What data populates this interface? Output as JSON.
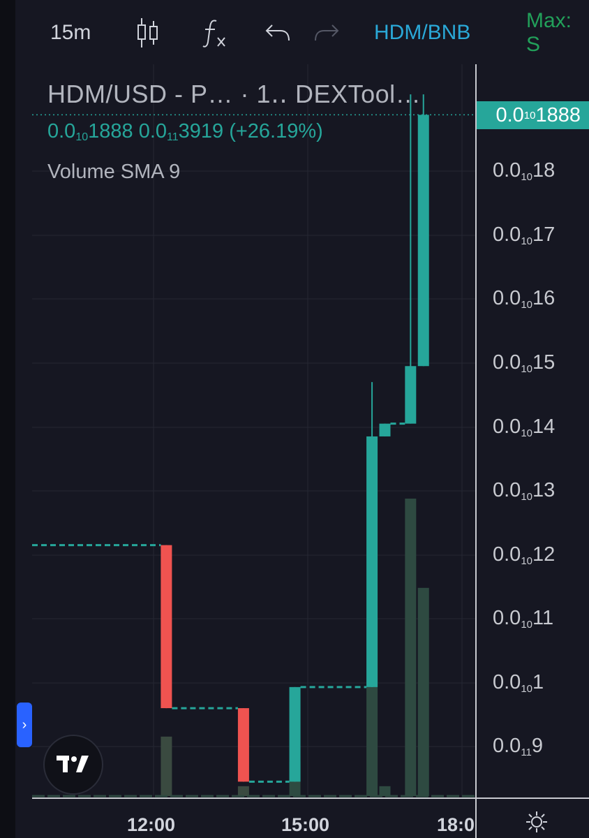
{
  "toolbar": {
    "interval": "15m",
    "undo_icon": "undo-icon",
    "redo_icon": "redo-icon",
    "symbol": "HDM/BNB",
    "max_label": "Max: S"
  },
  "legend": {
    "title": "HDM/USD - P… · 1‥ DEXTool…",
    "price_prefix": "0.0",
    "price_sub": "10",
    "price_rest": "1888",
    "change_prefix": "0.0",
    "change_sub": "11",
    "change_rest": "3919 (+26.19%)",
    "volume_label": "Volume SMA 9"
  },
  "current_price": {
    "prefix": "0.0",
    "sub": "10",
    "rest": "1888"
  },
  "price_axis": [
    {
      "prefix": "0.0",
      "sub": "10",
      "rest": "18"
    },
    {
      "prefix": "0.0",
      "sub": "10",
      "rest": "17"
    },
    {
      "prefix": "0.0",
      "sub": "10",
      "rest": "16"
    },
    {
      "prefix": "0.0",
      "sub": "10",
      "rest": "15"
    },
    {
      "prefix": "0.0",
      "sub": "10",
      "rest": "14"
    },
    {
      "prefix": "0.0",
      "sub": "10",
      "rest": "13"
    },
    {
      "prefix": "0.0",
      "sub": "10",
      "rest": "12"
    },
    {
      "prefix": "0.0",
      "sub": "10",
      "rest": "11"
    },
    {
      "prefix": "0.0",
      "sub": "10",
      "rest": "1"
    },
    {
      "prefix": "0.0",
      "sub": "11",
      "rest": "9"
    }
  ],
  "time_axis": [
    "12:00",
    "15:00",
    "18:0"
  ],
  "colors": {
    "up": "#26a69a",
    "down": "#ef5350",
    "volume_up": "#2e4a41",
    "background": "#161722",
    "grid": "#252733",
    "accent": "#2962ff"
  },
  "chart_data": {
    "type": "candlestick",
    "ylim": [
      8.2,
      19.4
    ],
    "candles": [
      {
        "t": "12:15",
        "o": 12.15,
        "h": 12.15,
        "l": 9.6,
        "c": 9.6,
        "v": 0.6
      },
      {
        "t": "13:45",
        "o": 9.6,
        "h": 9.6,
        "l": 8.45,
        "c": 8.45,
        "v": 0.1
      },
      {
        "t": "14:45",
        "o": 8.45,
        "h": 9.93,
        "l": 8.45,
        "c": 9.93,
        "v": 0.35
      },
      {
        "t": "16:15",
        "o": 9.93,
        "h": 14.7,
        "l": 9.93,
        "c": 13.85,
        "v": 1.8
      },
      {
        "t": "16:30",
        "o": 13.85,
        "h": 14.05,
        "l": 13.85,
        "c": 14.05,
        "v": 0.1
      },
      {
        "t": "17:00",
        "o": 14.05,
        "h": 19.2,
        "l": 14.05,
        "c": 14.95,
        "v": 3.0
      },
      {
        "t": "17:15",
        "o": 14.95,
        "h": 19.2,
        "l": 14.95,
        "c": 18.88,
        "v": 2.1
      }
    ]
  },
  "settings_icon": "gear-icon"
}
